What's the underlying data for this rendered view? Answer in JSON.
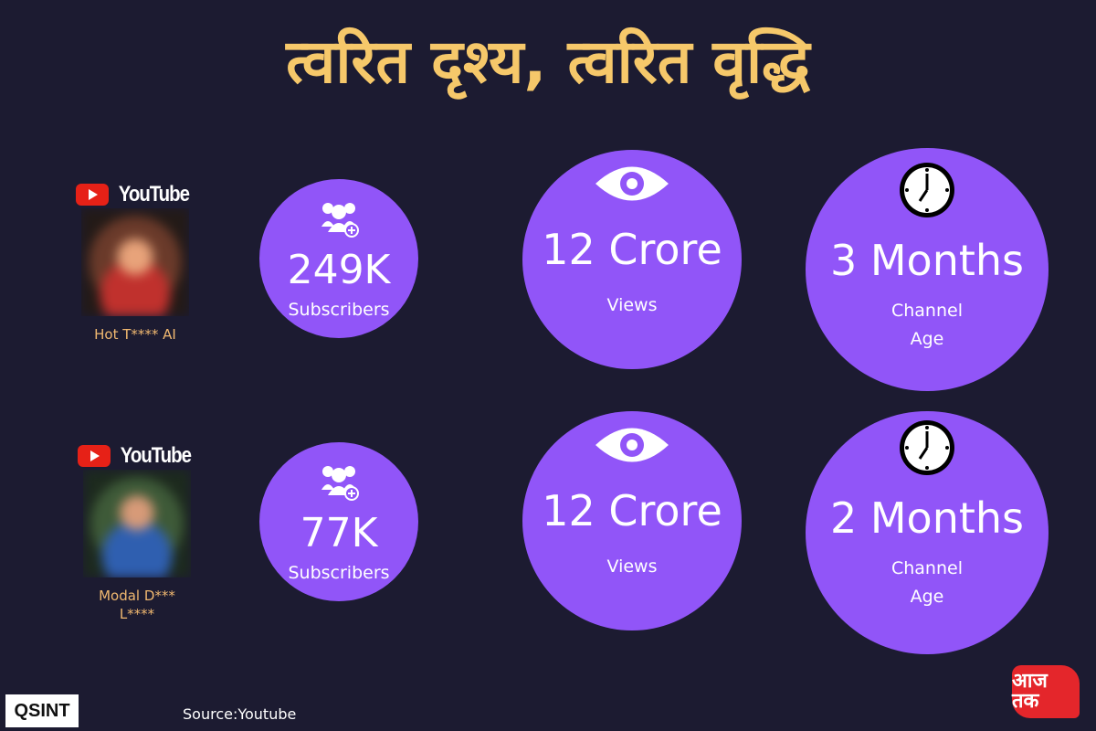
{
  "title": "त्वरित दृश्य, त्वरित वृद्धि",
  "channels": [
    {
      "platform": "YouTube",
      "name": "Hot T**** AI",
      "subscribers": {
        "value": "249K",
        "label": "Subscribers",
        "icon": "add-user-group-icon"
      },
      "views": {
        "value": "12 Crore",
        "label": "Views",
        "icon": "eye-icon"
      },
      "age": {
        "value": "3 Months",
        "label": "Channel Age",
        "icon": "clock-icon"
      }
    },
    {
      "platform": "YouTube",
      "name": "Modal D*** L****",
      "subscribers": {
        "value": "77K",
        "label": "Subscribers",
        "icon": "add-user-group-icon"
      },
      "views": {
        "value": "12 Crore",
        "label": "Views",
        "icon": "eye-icon"
      },
      "age": {
        "value": "2 Months",
        "label": "Channel Age",
        "icon": "clock-icon"
      }
    }
  ],
  "source": "Source:Youtube",
  "logos": {
    "left": "QSINT",
    "right": "आज तक"
  },
  "colors": {
    "background": "#1c1b31",
    "circle": "#9155f8",
    "title": "#f6c86a",
    "name": "#f0b870"
  }
}
